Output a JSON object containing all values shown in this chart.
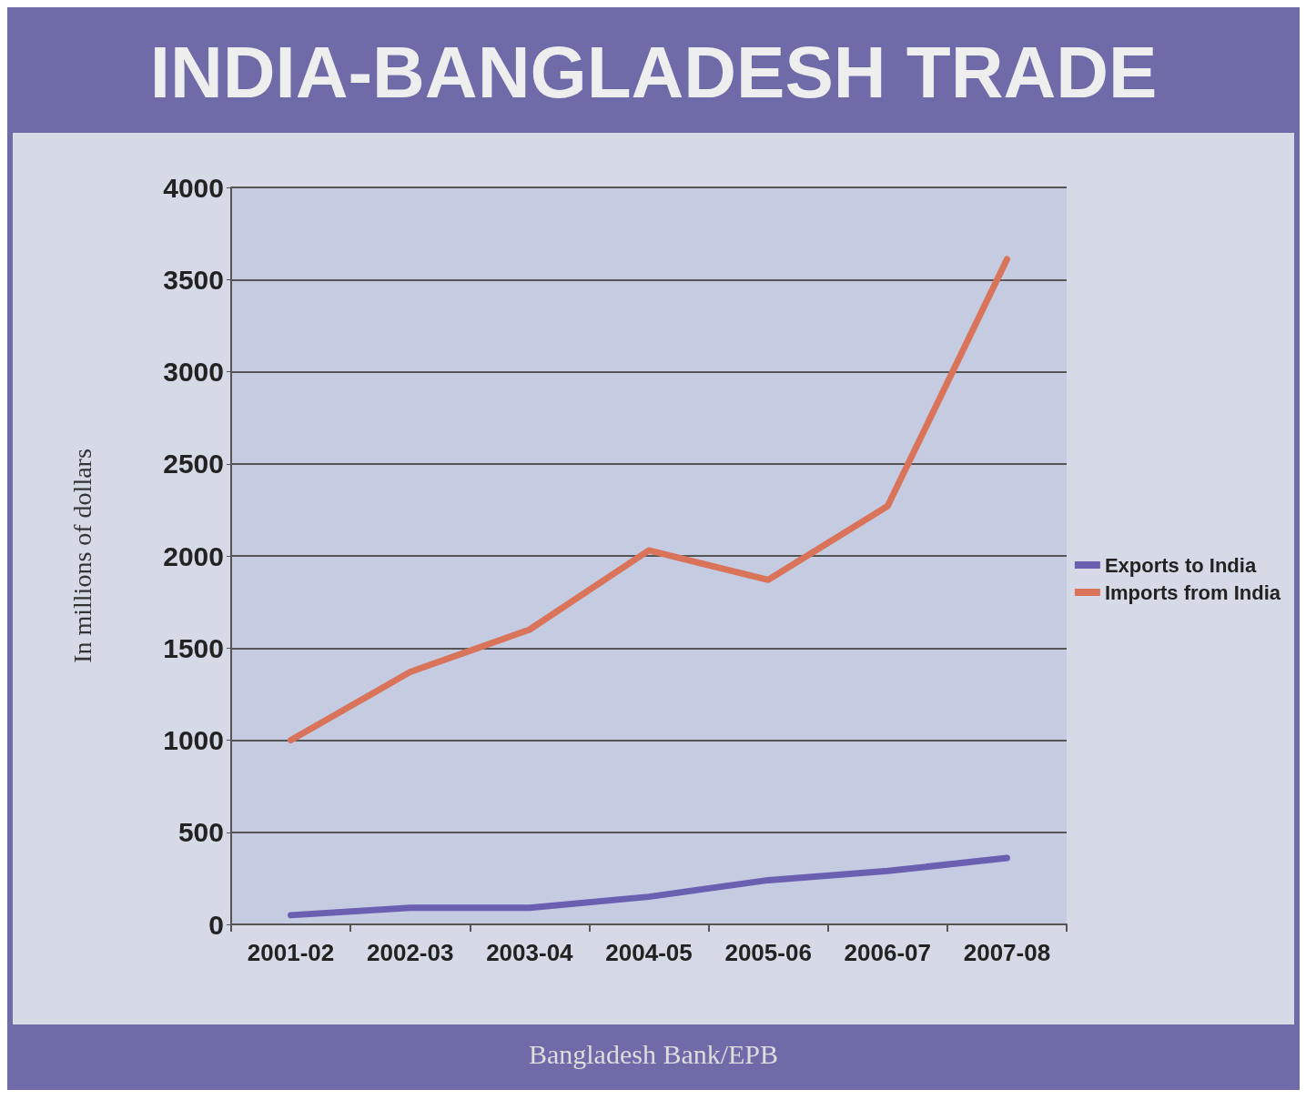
{
  "chart_data": {
    "type": "line",
    "title": "INDIA-BANGLADESH TRADE",
    "ylabel": "In millions of dollars",
    "categories": [
      "2001-02",
      "2002-03",
      "2003-04",
      "2004-05",
      "2005-06",
      "2006-07",
      "2007-08"
    ],
    "series": [
      {
        "name": "Exports to India",
        "color": "#6a5fb0",
        "values": [
          50,
          90,
          90,
          150,
          240,
          290,
          360
        ]
      },
      {
        "name": "Imports from India",
        "color": "#d9735a",
        "values": [
          1000,
          1370,
          1600,
          2030,
          1870,
          2270,
          3610
        ]
      }
    ],
    "ylim": [
      0,
      4000
    ],
    "yticks": [
      0,
      500,
      1000,
      1500,
      2000,
      2500,
      3000,
      3500,
      4000
    ],
    "grid": "y",
    "legend": "right",
    "marker": "none",
    "line_style": "solid",
    "annotations": [
      "Bangladesh Bank/EPB"
    ]
  }
}
